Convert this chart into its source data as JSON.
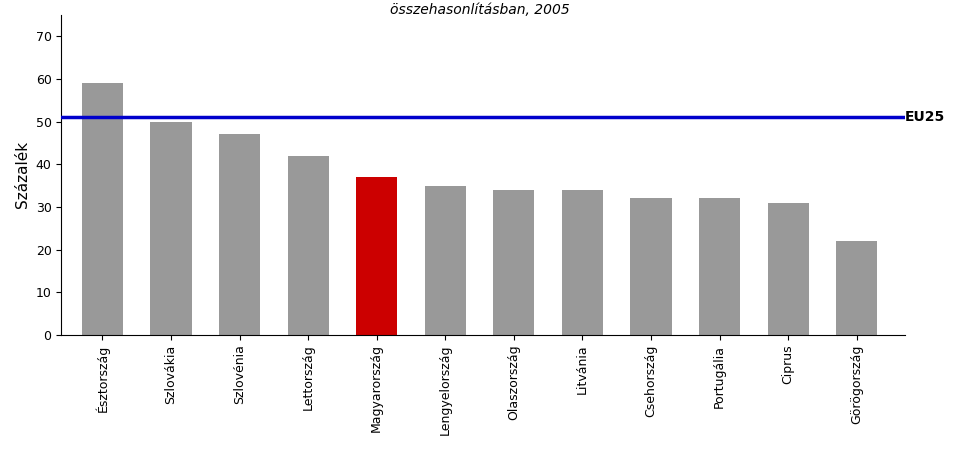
{
  "title_line2": "összehasonlításban, 2005",
  "ylabel": "Százalék",
  "eu25_label": "EU25",
  "eu25_value": 51,
  "categories": [
    "Észtország",
    "Szlovákia",
    "Szlovénia",
    "Lettország",
    "Magyarország",
    "Lengyelország",
    "Olaszország",
    "Litvánia",
    "Csehország",
    "Portugália",
    "Ciprus",
    "Görögország"
  ],
  "values": [
    59,
    50,
    47,
    42,
    37,
    35,
    34,
    34,
    32,
    32,
    31,
    22
  ],
  "bar_colors": [
    "#999999",
    "#999999",
    "#999999",
    "#999999",
    "#cc0000",
    "#999999",
    "#999999",
    "#999999",
    "#999999",
    "#999999",
    "#999999",
    "#999999"
  ],
  "ylim": [
    0,
    75
  ],
  "yticks": [
    0,
    10,
    20,
    30,
    40,
    50,
    60,
    70
  ],
  "eu25_line_color": "#0000cc",
  "background_color": "#ffffff",
  "title_fontsize": 10,
  "ylabel_fontsize": 11,
  "tick_fontsize": 9,
  "eu25_label_fontsize": 10,
  "bar_width": 0.6
}
